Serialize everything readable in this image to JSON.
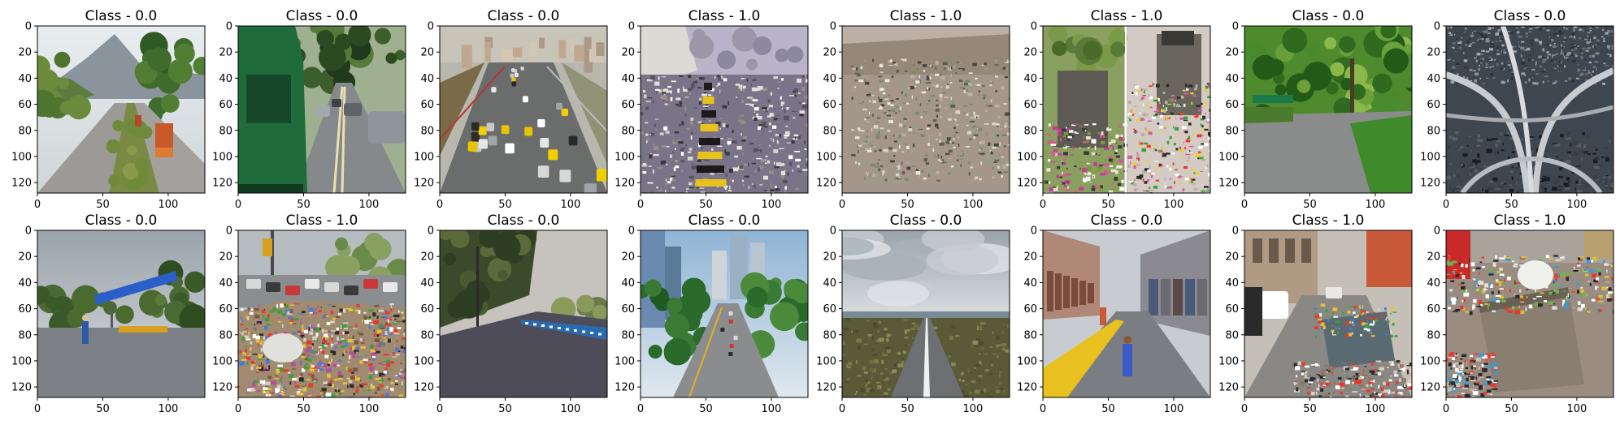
{
  "chart_data": {
    "type": "image-grid",
    "rows": 2,
    "cols": 8,
    "xlim": [
      0,
      128
    ],
    "ylim": [
      128,
      0
    ],
    "xticks": [
      0,
      50,
      100
    ],
    "yticks": [
      0,
      20,
      40,
      60,
      80,
      100,
      120
    ],
    "panels": [
      {
        "title": "Class - 0.0",
        "scene": "highway-mountains"
      },
      {
        "title": "Class - 0.0",
        "scene": "bus-tree-street"
      },
      {
        "title": "Class - 0.0",
        "scene": "busy-highway-traffic"
      },
      {
        "title": "Class - 1.0",
        "scene": "littered-road-divider"
      },
      {
        "title": "Class - 1.0",
        "scene": "ground-trash-closeup"
      },
      {
        "title": "Class - 1.0",
        "scene": "overflowing-bins-pair"
      },
      {
        "title": "Class - 0.0",
        "scene": "green-park-road"
      },
      {
        "title": "Class - 0.0",
        "scene": "aerial-interchange"
      },
      {
        "title": "Class - 0.0",
        "scene": "sweeper-cloudy-road"
      },
      {
        "title": "Class - 1.0",
        "scene": "street-garbage-heap"
      },
      {
        "title": "Class - 0.0",
        "scene": "clean-avenue"
      },
      {
        "title": "Class - 0.0",
        "scene": "city-skyscrapers-road"
      },
      {
        "title": "Class - 0.0",
        "scene": "rural-road-clouds"
      },
      {
        "title": "Class - 0.0",
        "scene": "market-street-walker"
      },
      {
        "title": "Class - 1.0",
        "scene": "street-dumpster-traffic"
      },
      {
        "title": "Class - 1.0",
        "scene": "garbage-dumpster-closeup"
      }
    ]
  }
}
